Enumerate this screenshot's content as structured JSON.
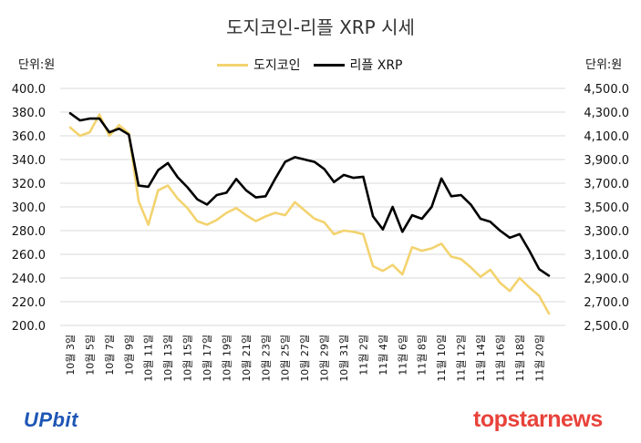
{
  "chart_data": {
    "type": "line",
    "title": "도지코인-리플 XRP 시세",
    "left_unit": "단위:원",
    "right_unit": "단위:원",
    "series": [
      {
        "name": "도지코인",
        "axis": "left",
        "color": "#f3d36f",
        "values": [
          367,
          360,
          363,
          378,
          360,
          369,
          362,
          305,
          285,
          314,
          318,
          307,
          299,
          288,
          285,
          289,
          295,
          299,
          293,
          288,
          292,
          295,
          293,
          304,
          297,
          290,
          287,
          277,
          280,
          279,
          277,
          250,
          246,
          251,
          243,
          266,
          263,
          265,
          269,
          258,
          256,
          249,
          241,
          247,
          236,
          229,
          240,
          232,
          225,
          210
        ]
      },
      {
        "name": "리플 XRP",
        "axis": "right",
        "color": "#000000",
        "values": [
          4290,
          4230,
          4245,
          4245,
          4130,
          4160,
          4110,
          3680,
          3670,
          3810,
          3870,
          3750,
          3665,
          3565,
          3520,
          3600,
          3620,
          3735,
          3640,
          3580,
          3590,
          3740,
          3880,
          3920,
          3900,
          3880,
          3820,
          3710,
          3770,
          3745,
          3755,
          3420,
          3310,
          3500,
          3290,
          3430,
          3400,
          3500,
          3740,
          3590,
          3600,
          3520,
          3400,
          3375,
          3300,
          3240,
          3270,
          3130,
          2975,
          2920
        ]
      }
    ],
    "x_tick_labels": [
      "10월 3일",
      "10월 5일",
      "10월 7일",
      "10월 9일",
      "10월 11일",
      "10월 13일",
      "10월 15일",
      "10월 17일",
      "10월 19일",
      "10월 21일",
      "10월 23일",
      "10월 25일",
      "10월 27일",
      "10월 29일",
      "10월 31일",
      "11월 2일",
      "11월 4일",
      "11월 6일",
      "11월 8일",
      "11월 10일",
      "11월 12일",
      "11월 14일",
      "11월 16일",
      "11월 18일",
      "11월 20일"
    ],
    "y_left": {
      "min": 200,
      "max": 400,
      "ticks": [
        400,
        380,
        360,
        340,
        320,
        300,
        280,
        260,
        240,
        220,
        200
      ],
      "tick_labels": [
        "400.0",
        "380.0",
        "360.0",
        "340.0",
        "320.0",
        "300.0",
        "280.0",
        "260.0",
        "240.0",
        "220.0",
        "200.0"
      ]
    },
    "y_right": {
      "min": 2500,
      "max": 4500,
      "ticks": [
        4500,
        4300,
        4100,
        3900,
        3700,
        3500,
        3300,
        3100,
        2900,
        2700,
        2500
      ],
      "tick_labels": [
        "4,500.0",
        "4,300.0",
        "4,100.0",
        "3,900.0",
        "3,700.0",
        "3,500.0",
        "3,300.0",
        "3,100.0",
        "2,900.0",
        "2,700.0",
        "2,500.0"
      ]
    },
    "grid": true,
    "legend_position": "top-center"
  },
  "branding": {
    "source_logo": "UPbit",
    "watermark": "topstarnews"
  }
}
